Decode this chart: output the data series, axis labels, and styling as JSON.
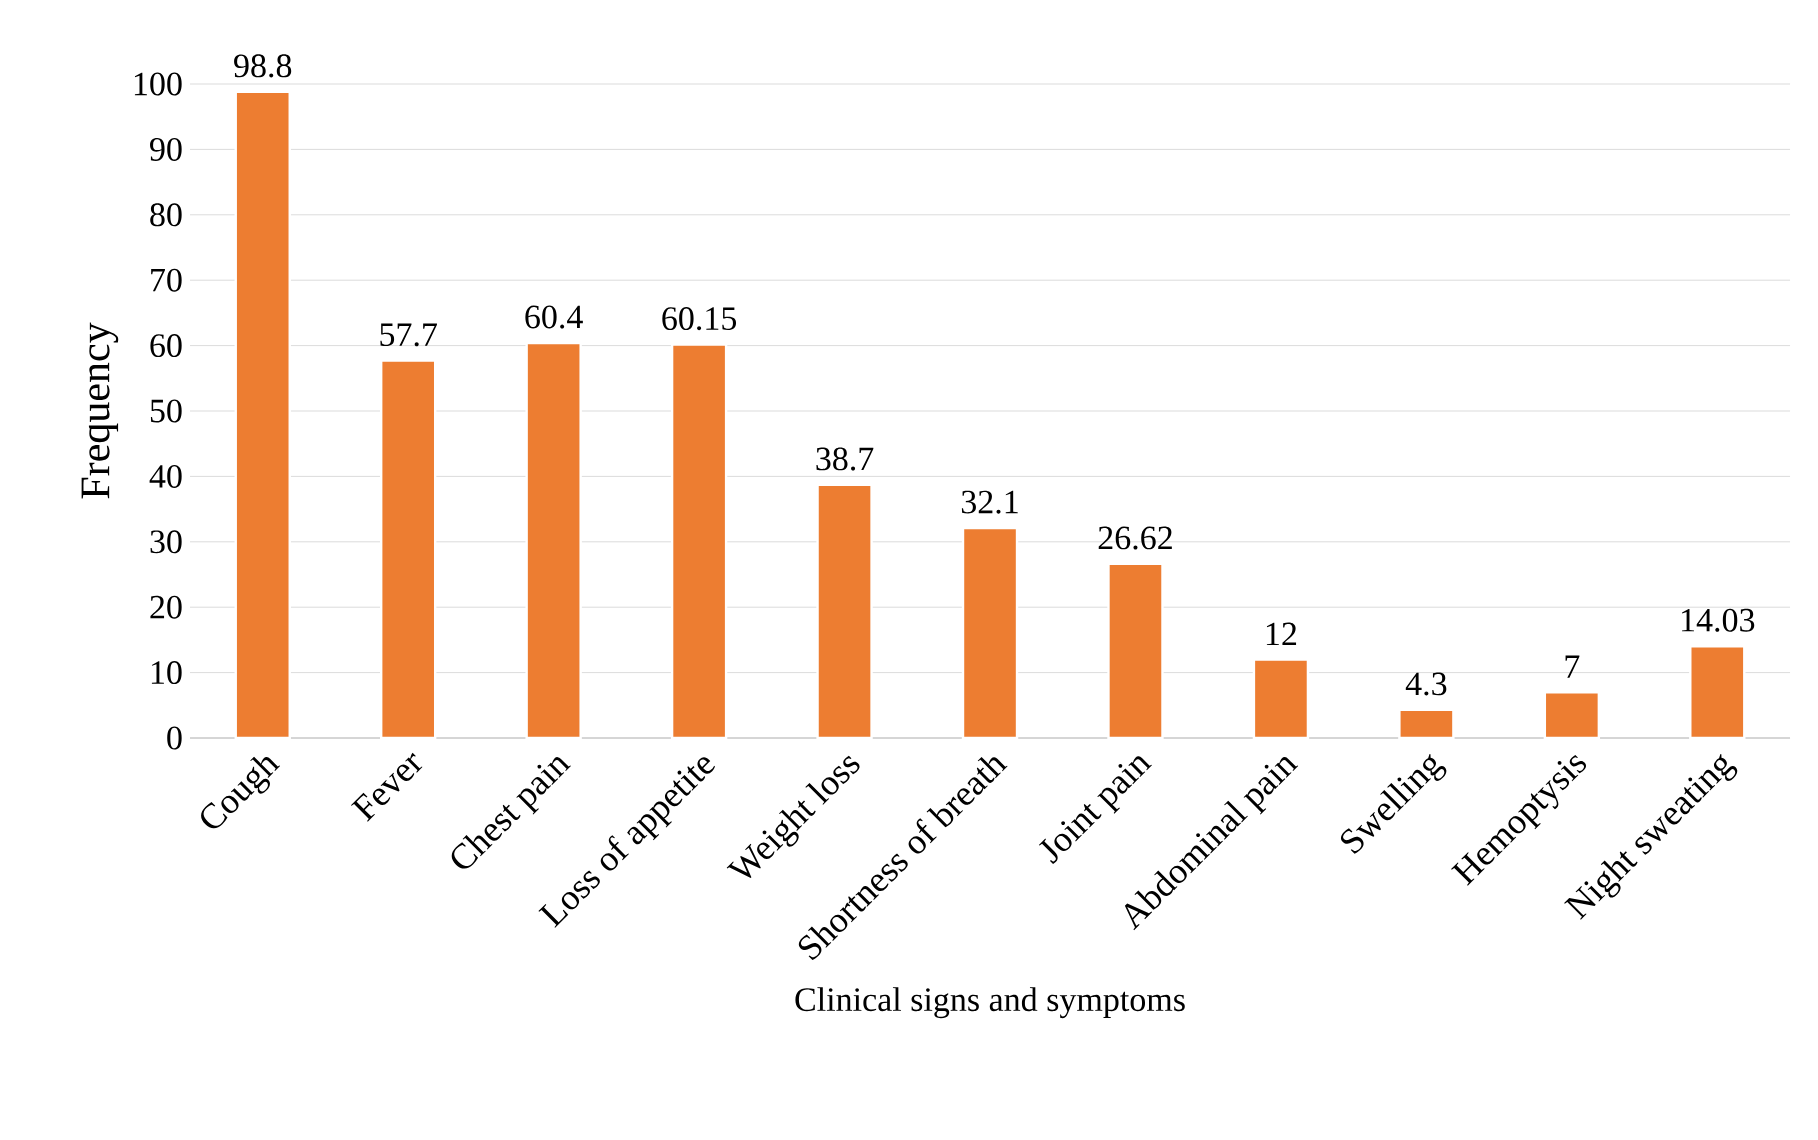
{
  "chart_data": {
    "type": "bar",
    "xlabel": "Clinical signs and symptoms",
    "ylabel": "Frequency",
    "categories": [
      "Cough",
      "Fever",
      "Chest pain",
      "Loss of appetite",
      "Weight loss",
      "Shortness of breath",
      "Joint pain",
      "Abdominal pain",
      "Swelling",
      "Hemoptysis",
      "Night sweating"
    ],
    "values": [
      98.8,
      57.7,
      60.4,
      60.15,
      38.7,
      32.1,
      26.62,
      12,
      4.3,
      7,
      14.03
    ],
    "color": "#ed7d31",
    "ylim": [
      0,
      100
    ],
    "yticks": [
      0,
      10,
      20,
      30,
      40,
      50,
      60,
      70,
      80,
      90,
      100
    ],
    "grid": "y",
    "data_labels": true
  }
}
